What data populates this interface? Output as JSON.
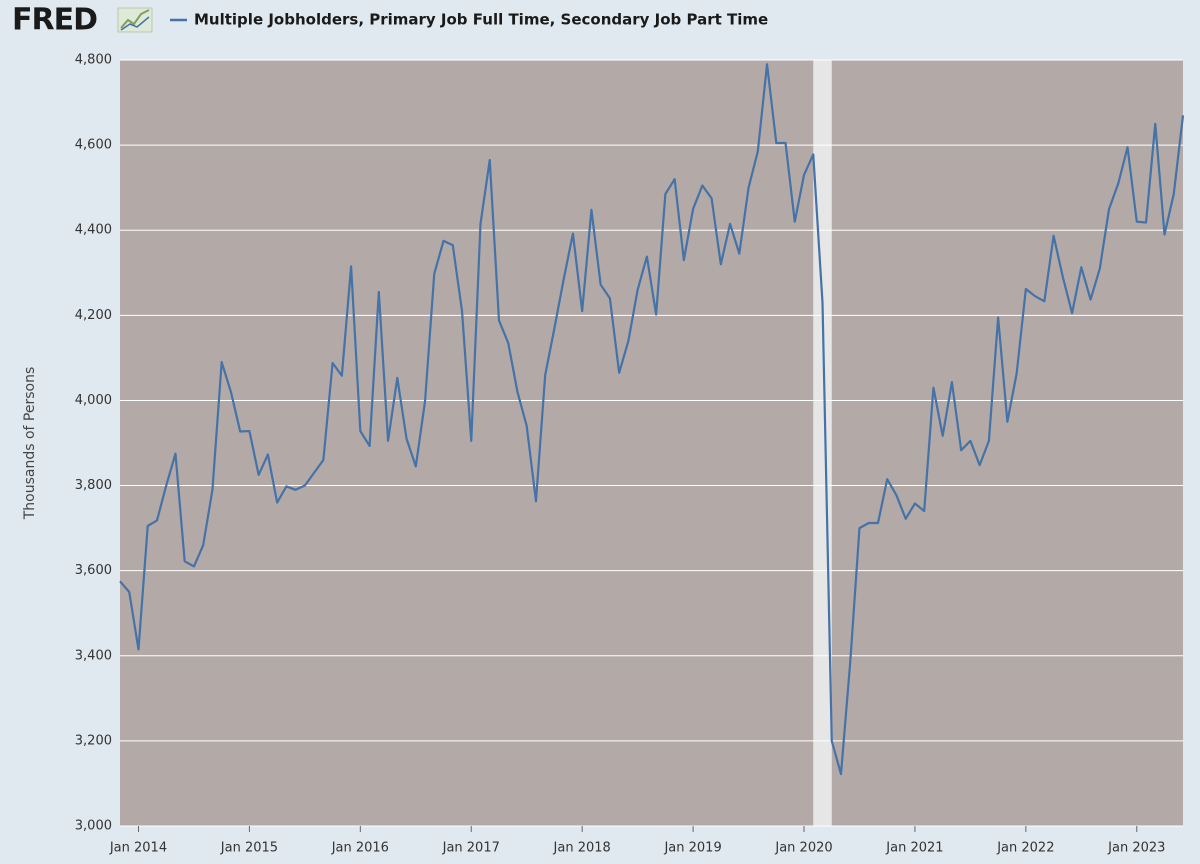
{
  "logo": "FRED",
  "chart_data": {
    "type": "line",
    "ylabel": "Thousands of Persons",
    "x": [
      "2013-11",
      "2013-12",
      "2014-01",
      "2014-02",
      "2014-03",
      "2014-04",
      "2014-05",
      "2014-06",
      "2014-07",
      "2014-08",
      "2014-09",
      "2014-10",
      "2014-11",
      "2014-12",
      "2015-01",
      "2015-02",
      "2015-03",
      "2015-04",
      "2015-05",
      "2015-06",
      "2015-07",
      "2015-08",
      "2015-09",
      "2015-10",
      "2015-11",
      "2015-12",
      "2016-01",
      "2016-02",
      "2016-03",
      "2016-04",
      "2016-05",
      "2016-06",
      "2016-07",
      "2016-08",
      "2016-09",
      "2016-10",
      "2016-11",
      "2016-12",
      "2017-01",
      "2017-02",
      "2017-03",
      "2017-04",
      "2017-05",
      "2017-06",
      "2017-07",
      "2017-08",
      "2017-09",
      "2017-10",
      "2017-11",
      "2017-12",
      "2018-01",
      "2018-02",
      "2018-03",
      "2018-04",
      "2018-05",
      "2018-06",
      "2018-07",
      "2018-08",
      "2018-09",
      "2018-10",
      "2018-11",
      "2018-12",
      "2019-01",
      "2019-02",
      "2019-03",
      "2019-04",
      "2019-05",
      "2019-06",
      "2019-07",
      "2019-08",
      "2019-09",
      "2019-10",
      "2019-11",
      "2019-12",
      "2020-01",
      "2020-02",
      "2020-03",
      "2020-04",
      "2020-05",
      "2020-06",
      "2020-07",
      "2020-08",
      "2020-09",
      "2020-10",
      "2020-11",
      "2020-12",
      "2021-01",
      "2021-02",
      "2021-03",
      "2021-04",
      "2021-05",
      "2021-06",
      "2021-07",
      "2021-08",
      "2021-09",
      "2021-10",
      "2021-11",
      "2021-12",
      "2022-01",
      "2022-02",
      "2022-03",
      "2022-04",
      "2022-05",
      "2022-06",
      "2022-07",
      "2022-08",
      "2022-09",
      "2022-10",
      "2022-11",
      "2022-12",
      "2023-01",
      "2023-02",
      "2023-03",
      "2023-04",
      "2023-05",
      "2023-06"
    ],
    "series": [
      {
        "name": "Multiple Jobholders, Primary Job Full Time, Secondary Job Part Time",
        "color": "#4572a7",
        "values": [
          3575,
          3550,
          3415,
          3705,
          3718,
          3800,
          3875,
          3622,
          3610,
          3660,
          3790,
          4090,
          4020,
          3927,
          3928,
          3825,
          3873,
          3760,
          3798,
          3790,
          3800,
          3830,
          3860,
          4088,
          4058,
          4315,
          3928,
          3893,
          4255,
          3905,
          4053,
          3910,
          3845,
          3998,
          4298,
          4375,
          4365,
          4210,
          3905,
          4415,
          4565,
          4188,
          4135,
          4020,
          3940,
          3763,
          4060,
          4170,
          4285,
          4392,
          4210,
          4448,
          4272,
          4240,
          4065,
          4140,
          4260,
          4338,
          4202,
          4485,
          4520,
          4330,
          4450,
          4505,
          4475,
          4320,
          4415,
          4345,
          4500,
          4585,
          4790,
          4605,
          4605,
          4420,
          4530,
          4578,
          4230,
          3200,
          3122,
          3385,
          3700,
          3712,
          3712,
          3815,
          3777,
          3722,
          3758,
          3740,
          4030,
          3917,
          4043,
          3883,
          3905,
          3848,
          3905,
          4195,
          3950,
          4063,
          4262,
          4245,
          4233,
          4387,
          4290,
          4205,
          4313,
          4237,
          4310,
          4450,
          4510,
          4595,
          4420,
          4418,
          4650,
          4390,
          4485,
          4670
        ]
      }
    ],
    "xlim": [
      "2013-11",
      "2023-06"
    ],
    "xticks": [
      {
        "value": "2014-01",
        "label": "Jan 2014"
      },
      {
        "value": "2015-01",
        "label": "Jan 2015"
      },
      {
        "value": "2016-01",
        "label": "Jan 2016"
      },
      {
        "value": "2017-01",
        "label": "Jan 2017"
      },
      {
        "value": "2018-01",
        "label": "Jan 2018"
      },
      {
        "value": "2019-01",
        "label": "Jan 2019"
      },
      {
        "value": "2020-01",
        "label": "Jan 2020"
      },
      {
        "value": "2021-01",
        "label": "Jan 2021"
      },
      {
        "value": "2022-01",
        "label": "Jan 2022"
      },
      {
        "value": "2023-01",
        "label": "Jan 2023"
      }
    ],
    "ylim": [
      3000,
      4800
    ],
    "yticks": [
      {
        "value": 3000,
        "label": "3,000"
      },
      {
        "value": 3200,
        "label": "3,200"
      },
      {
        "value": 3400,
        "label": "3,400"
      },
      {
        "value": 3600,
        "label": "3,600"
      },
      {
        "value": 3800,
        "label": "3,800"
      },
      {
        "value": 4000,
        "label": "4,000"
      },
      {
        "value": 4200,
        "label": "4,200"
      },
      {
        "value": 4400,
        "label": "4,400"
      },
      {
        "value": 4600,
        "label": "4,600"
      },
      {
        "value": 4800,
        "label": "4,800"
      }
    ],
    "grid": true,
    "shading": [
      {
        "start": "2020-02",
        "end": "2020-04"
      }
    ]
  }
}
